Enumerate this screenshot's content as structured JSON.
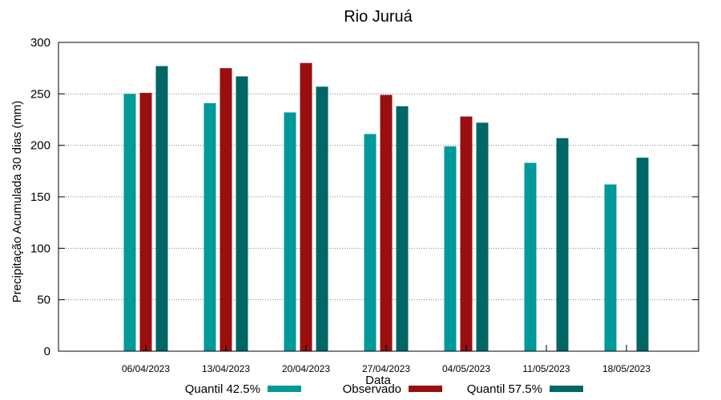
{
  "chart_data": {
    "type": "bar",
    "title": "Rio Juruá",
    "xlabel": "Data",
    "ylabel": "Precipitação Acumulada 30 dias (mm)",
    "ylim": [
      0,
      300
    ],
    "yticks": [
      0,
      50,
      100,
      150,
      200,
      250,
      300
    ],
    "categories": [
      "06/04/2023",
      "13/04/2023",
      "20/04/2023",
      "27/04/2023",
      "04/05/2023",
      "11/05/2023",
      "18/05/2023"
    ],
    "series": [
      {
        "name": "Quantil 42.5%",
        "color": "#009999",
        "values": [
          250,
          241,
          232,
          211,
          199,
          183,
          162
        ]
      },
      {
        "name": "Observado",
        "color": "#990f0f",
        "values": [
          251,
          275,
          280,
          249,
          228,
          null,
          null
        ]
      },
      {
        "name": "Quantil 57.5%",
        "color": "#006666",
        "values": [
          277,
          267,
          257,
          238,
          222,
          207,
          188
        ]
      }
    ],
    "grid": true,
    "legend_position": "bottom"
  }
}
